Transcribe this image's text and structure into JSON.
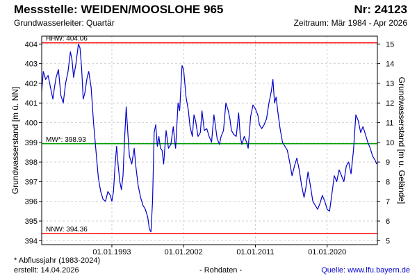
{
  "header": {
    "title": "Messstelle: WEIDEN/MOOSLOHE 965",
    "number": "Nr: 24123",
    "aquifer": "Grundwasserleiter: Quartär",
    "period": "Zeitraum: Mär 1984 - Apr 2026"
  },
  "footer": {
    "note": "* Abflussjahr (1983-2024)",
    "created": "erstellt:  14.04.2026",
    "raw": "- Rohdaten -",
    "source": "Quelle:  www.lfu.bayern.de"
  },
  "chart_data": {
    "type": "line",
    "ylabel": "Grundwasserstand [m ü. NN]",
    "y2label": "Grundwasserstand [m u. Gelände]",
    "ylim": [
      393.8,
      404.4
    ],
    "y_ticks": [
      394,
      395,
      396,
      397,
      398,
      399,
      400,
      401,
      402,
      403,
      404
    ],
    "y2_ticks": [
      5,
      6,
      7,
      8,
      9,
      10,
      11,
      12,
      13,
      14,
      15
    ],
    "xlim": [
      1984.2,
      2026.3
    ],
    "x_ticks": [
      {
        "pos": 1993.0,
        "label": "01.01.1993"
      },
      {
        "pos": 2002.0,
        "label": "01.01.2002"
      },
      {
        "pos": 2011.0,
        "label": "01.01.2011"
      },
      {
        "pos": 2020.0,
        "label": "01.01.2020"
      }
    ],
    "reference_lines": [
      {
        "name": "HHW",
        "label": "HHW: 404.06",
        "value": 404.06,
        "color": "#ff0000"
      },
      {
        "name": "MW*",
        "label": "MW*: 398.93",
        "value": 398.93,
        "color": "#00a000"
      },
      {
        "name": "NNW",
        "label": "NNW: 394.36",
        "value": 394.36,
        "color": "#ff0000"
      }
    ],
    "grid": true,
    "series": [
      {
        "color": "#0000cc",
        "points": [
          [
            1984.2,
            401.6
          ],
          [
            1984.4,
            402.6
          ],
          [
            1984.7,
            402.2
          ],
          [
            1985.0,
            402.4
          ],
          [
            1985.3,
            401.8
          ],
          [
            1985.6,
            401.2
          ],
          [
            1985.8,
            401.8
          ],
          [
            1986.0,
            402.3
          ],
          [
            1986.3,
            402.7
          ],
          [
            1986.6,
            401.4
          ],
          [
            1986.9,
            401.0
          ],
          [
            1987.2,
            402.0
          ],
          [
            1987.5,
            402.6
          ],
          [
            1987.8,
            403.6
          ],
          [
            1988.0,
            403.2
          ],
          [
            1988.2,
            402.3
          ],
          [
            1988.5,
            403.0
          ],
          [
            1988.8,
            404.0
          ],
          [
            1989.0,
            403.8
          ],
          [
            1989.2,
            402.8
          ],
          [
            1989.4,
            401.2
          ],
          [
            1989.6,
            401.5
          ],
          [
            1989.9,
            402.3
          ],
          [
            1990.1,
            402.6
          ],
          [
            1990.4,
            401.8
          ],
          [
            1990.7,
            400.0
          ],
          [
            1991.0,
            398.6
          ],
          [
            1991.3,
            397.2
          ],
          [
            1991.6,
            396.5
          ],
          [
            1991.9,
            396.1
          ],
          [
            1992.2,
            396.0
          ],
          [
            1992.5,
            396.5
          ],
          [
            1992.8,
            396.3
          ],
          [
            1993.0,
            396.0
          ],
          [
            1993.2,
            396.5
          ],
          [
            1993.4,
            397.8
          ],
          [
            1993.6,
            398.8
          ],
          [
            1993.8,
            397.8
          ],
          [
            1994.0,
            397.0
          ],
          [
            1994.2,
            396.6
          ],
          [
            1994.4,
            397.3
          ],
          [
            1994.6,
            399.2
          ],
          [
            1994.8,
            400.8
          ],
          [
            1995.0,
            399.5
          ],
          [
            1995.2,
            398.3
          ],
          [
            1995.5,
            397.9
          ],
          [
            1995.8,
            398.7
          ],
          [
            1996.0,
            397.8
          ],
          [
            1996.3,
            396.8
          ],
          [
            1996.6,
            396.2
          ],
          [
            1996.9,
            395.8
          ],
          [
            1997.2,
            395.6
          ],
          [
            1997.5,
            395.2
          ],
          [
            1997.7,
            394.6
          ],
          [
            1997.9,
            394.45
          ],
          [
            1998.1,
            396.0
          ],
          [
            1998.3,
            399.5
          ],
          [
            1998.5,
            399.9
          ],
          [
            1998.7,
            398.8
          ],
          [
            1998.9,
            399.3
          ],
          [
            1999.1,
            398.7
          ],
          [
            1999.3,
            398.6
          ],
          [
            1999.5,
            397.9
          ],
          [
            1999.8,
            399.6
          ],
          [
            2000.1,
            398.7
          ],
          [
            2000.4,
            398.9
          ],
          [
            2000.7,
            399.8
          ],
          [
            2000.9,
            399.0
          ],
          [
            2001.0,
            398.7
          ],
          [
            2001.3,
            401.0
          ],
          [
            2001.5,
            400.6
          ],
          [
            2001.8,
            402.9
          ],
          [
            2002.0,
            402.7
          ],
          [
            2002.3,
            401.3
          ],
          [
            2002.6,
            400.6
          ],
          [
            2002.8,
            399.8
          ],
          [
            2003.1,
            399.3
          ],
          [
            2003.3,
            400.4
          ],
          [
            2003.5,
            400.1
          ],
          [
            2003.8,
            399.3
          ],
          [
            2004.1,
            399.5
          ],
          [
            2004.3,
            400.6
          ],
          [
            2004.6,
            399.6
          ],
          [
            2004.9,
            399.7
          ],
          [
            2005.2,
            399.3
          ],
          [
            2005.5,
            399.0
          ],
          [
            2005.8,
            400.4
          ],
          [
            2006.0,
            399.8
          ],
          [
            2006.2,
            399.2
          ],
          [
            2006.5,
            398.9
          ],
          [
            2006.7,
            399.3
          ],
          [
            2007.0,
            399.6
          ],
          [
            2007.3,
            401.0
          ],
          [
            2007.6,
            400.6
          ],
          [
            2007.8,
            400.2
          ],
          [
            2008.0,
            399.6
          ],
          [
            2008.3,
            399.4
          ],
          [
            2008.6,
            399.3
          ],
          [
            2008.9,
            400.5
          ],
          [
            2009.1,
            399.3
          ],
          [
            2009.3,
            398.9
          ],
          [
            2009.6,
            399.3
          ],
          [
            2009.9,
            399.0
          ],
          [
            2010.1,
            398.7
          ],
          [
            2010.4,
            400.3
          ],
          [
            2010.7,
            400.9
          ],
          [
            2011.0,
            400.7
          ],
          [
            2011.3,
            400.4
          ],
          [
            2011.5,
            399.9
          ],
          [
            2011.8,
            399.7
          ],
          [
            2012.1,
            399.9
          ],
          [
            2012.4,
            400.2
          ],
          [
            2012.7,
            401.0
          ],
          [
            2013.0,
            401.6
          ],
          [
            2013.2,
            402.2
          ],
          [
            2013.4,
            401.0
          ],
          [
            2013.6,
            401.3
          ],
          [
            2013.8,
            400.6
          ],
          [
            2014.1,
            399.7
          ],
          [
            2014.4,
            399.0
          ],
          [
            2014.7,
            398.8
          ],
          [
            2015.0,
            398.6
          ],
          [
            2015.3,
            398.0
          ],
          [
            2015.6,
            397.3
          ],
          [
            2015.9,
            397.8
          ],
          [
            2016.2,
            398.2
          ],
          [
            2016.5,
            397.6
          ],
          [
            2016.8,
            396.8
          ],
          [
            2017.1,
            396.2
          ],
          [
            2017.3,
            396.6
          ],
          [
            2017.6,
            397.5
          ],
          [
            2017.9,
            396.8
          ],
          [
            2018.2,
            396.0
          ],
          [
            2018.5,
            395.8
          ],
          [
            2018.8,
            395.6
          ],
          [
            2019.1,
            395.9
          ],
          [
            2019.4,
            396.3
          ],
          [
            2019.7,
            396.0
          ],
          [
            2020.0,
            395.6
          ],
          [
            2020.3,
            395.5
          ],
          [
            2020.6,
            396.4
          ],
          [
            2020.9,
            397.3
          ],
          [
            2021.2,
            397.0
          ],
          [
            2021.5,
            397.6
          ],
          [
            2021.8,
            397.3
          ],
          [
            2022.1,
            397.0
          ],
          [
            2022.4,
            397.8
          ],
          [
            2022.7,
            398.0
          ],
          [
            2023.0,
            397.4
          ],
          [
            2023.3,
            398.6
          ],
          [
            2023.6,
            400.4
          ],
          [
            2023.9,
            400.1
          ],
          [
            2024.2,
            399.5
          ],
          [
            2024.5,
            399.8
          ],
          [
            2024.8,
            399.4
          ],
          [
            2025.1,
            399.0
          ],
          [
            2025.4,
            398.7
          ],
          [
            2025.7,
            398.3
          ],
          [
            2026.0,
            398.1
          ],
          [
            2026.2,
            397.9
          ]
        ]
      }
    ]
  }
}
